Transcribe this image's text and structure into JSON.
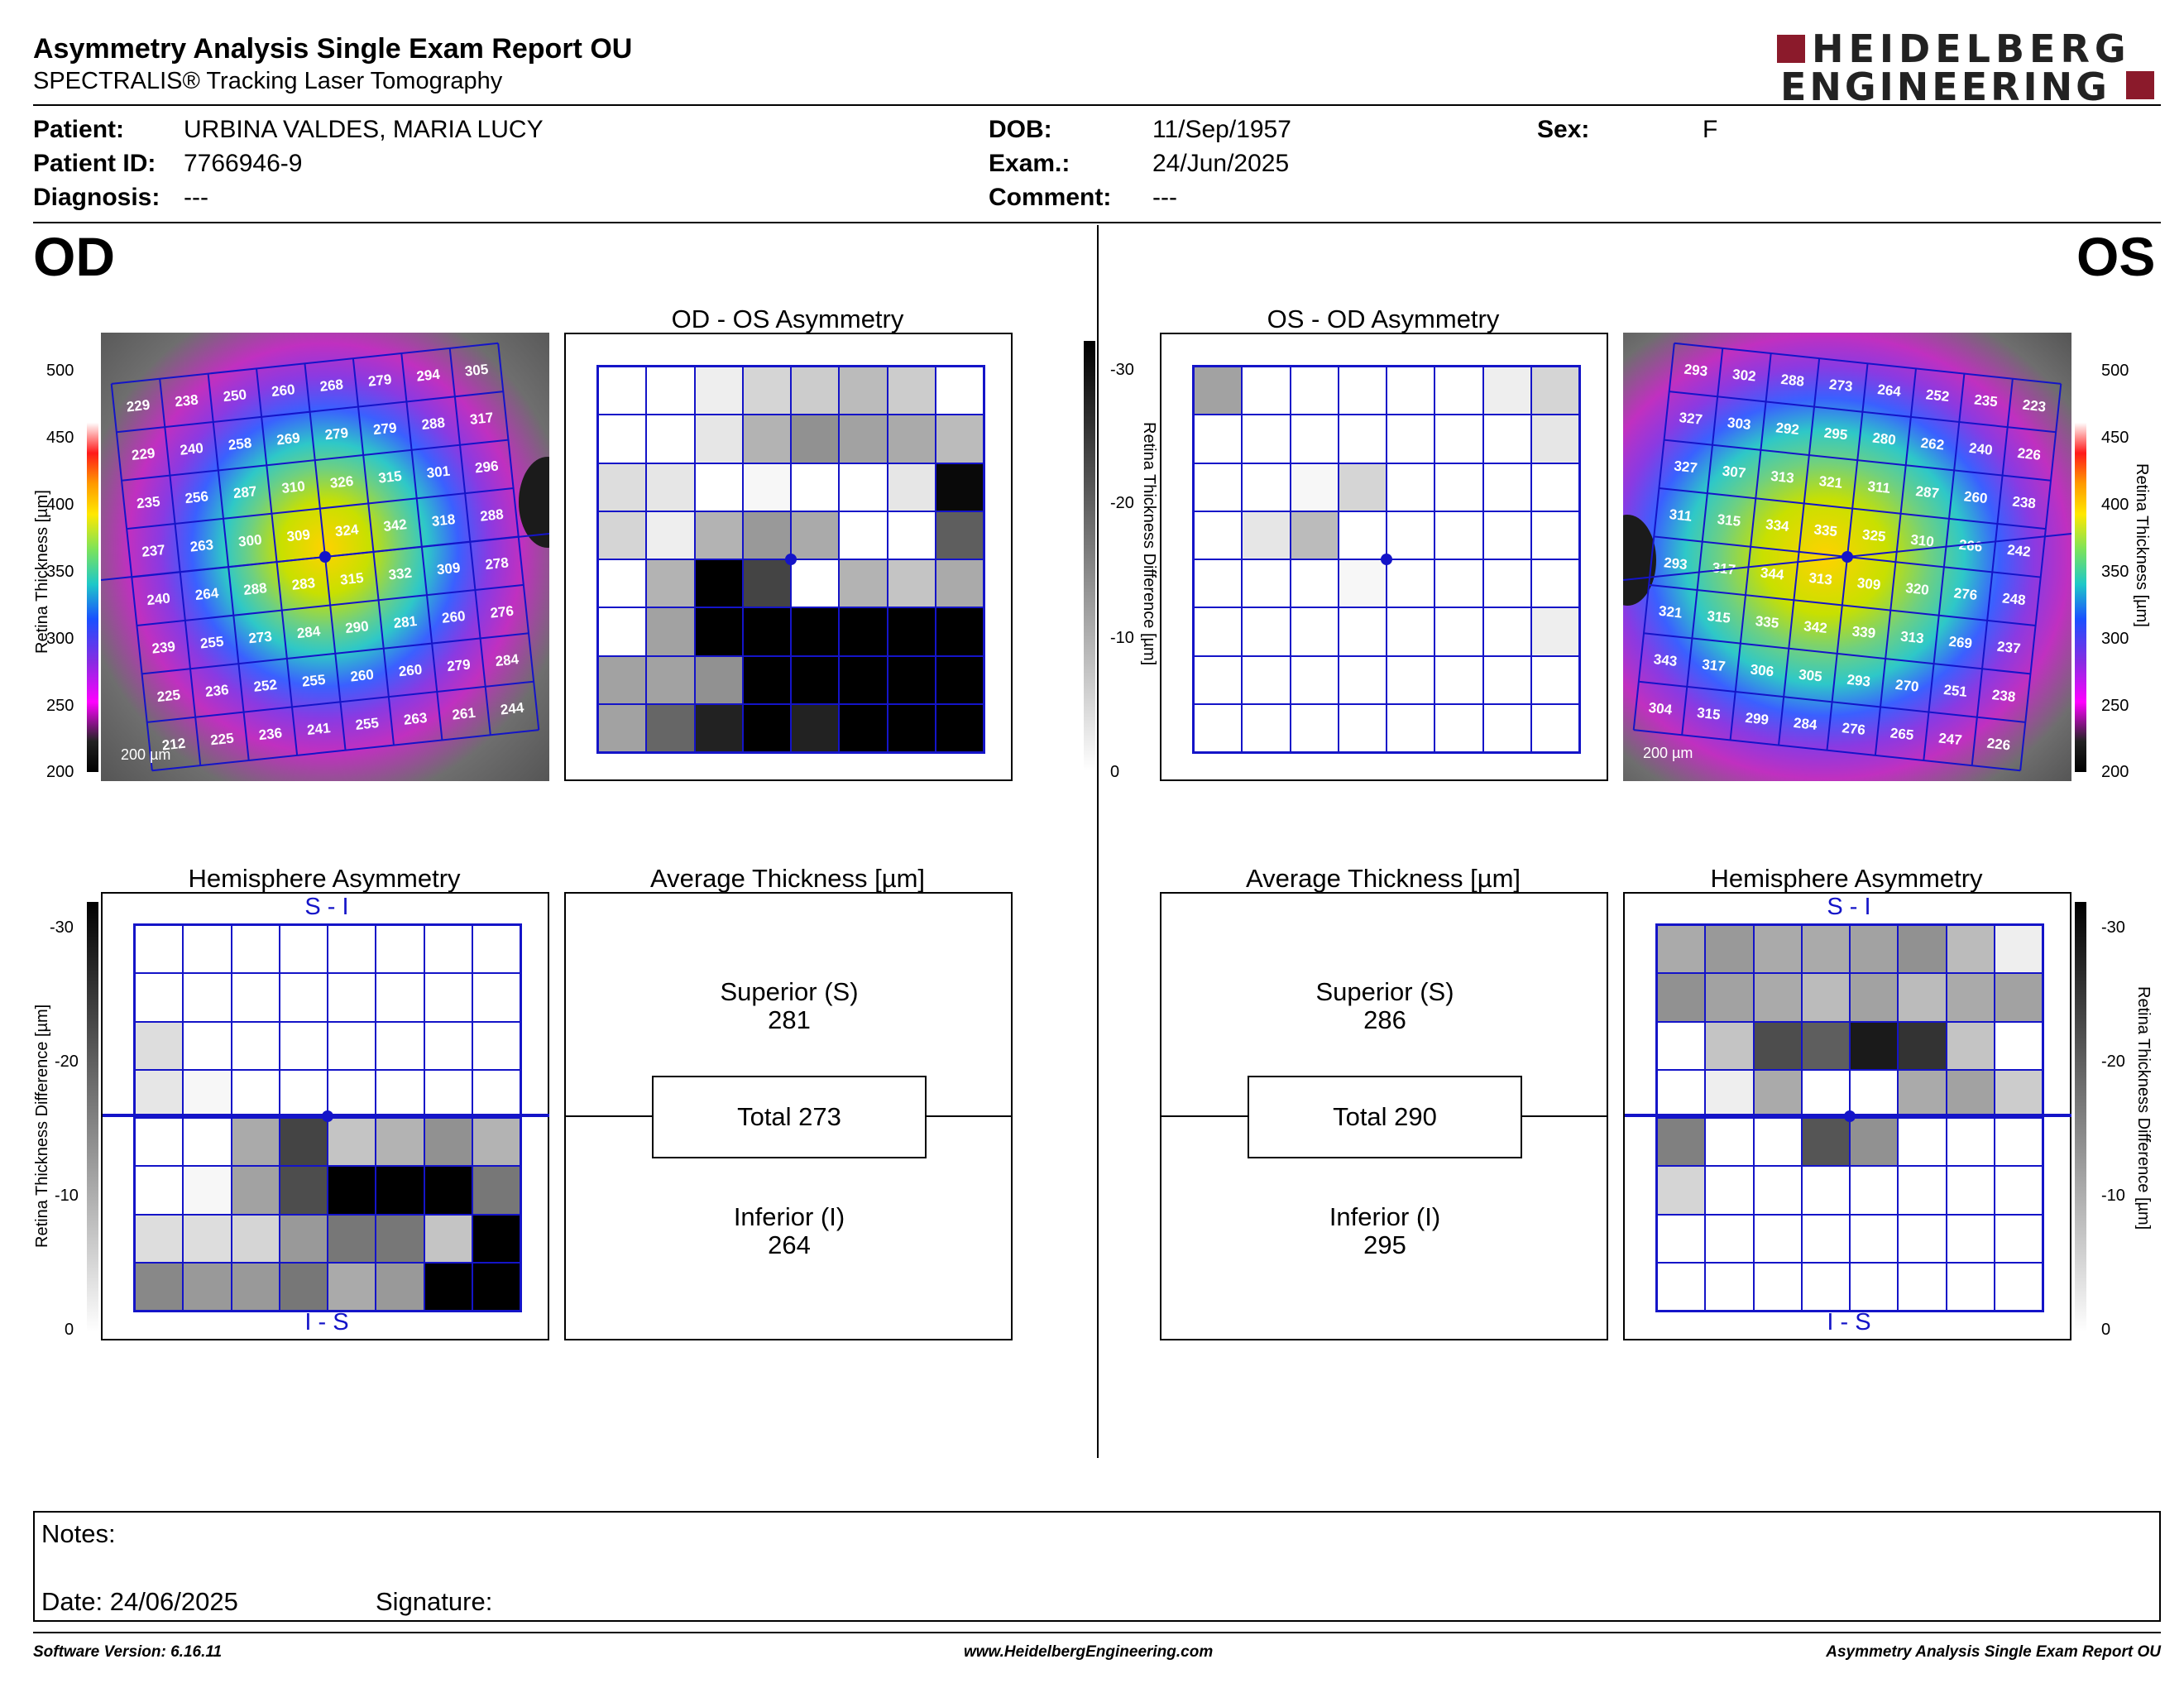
{
  "report": {
    "title": "Asymmetry Analysis Single Exam Report OU",
    "subtitle": "SPECTRALIS® Tracking Laser Tomography",
    "logo_line1": "HEIDELBERG",
    "logo_line2": "ENGINEERING"
  },
  "patient": {
    "patient_label": "Patient:",
    "patient_value": "URBINA VALDES, MARIA LUCY",
    "id_label": "Patient ID:",
    "id_value": "7766946-9",
    "diagnosis_label": "Diagnosis:",
    "diagnosis_value": "---",
    "dob_label": "DOB:",
    "dob_value": "11/Sep/1957",
    "exam_label": "Exam.:",
    "exam_value": "24/Jun/2025",
    "comment_label": "Comment:",
    "comment_value": "---",
    "sex_label": "Sex:",
    "sex_value": "F"
  },
  "od": {
    "eye_label": "OD",
    "asym_title": "OD - OS Asymmetry",
    "hemi_title": "Hemisphere Asymmetry",
    "avg_title": "Average Thickness [µm]",
    "superior_label": "Superior (S)",
    "superior_value": "281",
    "total_label": "Total 273",
    "inferior_label": "Inferior (I)",
    "inferior_value": "264",
    "scale_label": "200 µm",
    "hemi_top": "S - I",
    "hemi_bottom": "I - S",
    "thickness_grid": [
      [
        229,
        238,
        250,
        260,
        268,
        279,
        294,
        305
      ],
      [
        229,
        240,
        258,
        269,
        279,
        279,
        288,
        317
      ],
      [
        235,
        256,
        287,
        310,
        326,
        315,
        301,
        296
      ],
      [
        237,
        263,
        300,
        309,
        324,
        342,
        318,
        288
      ],
      [
        240,
        264,
        288,
        283,
        315,
        332,
        309,
        278
      ],
      [
        239,
        255,
        273,
        284,
        290,
        281,
        260,
        276
      ],
      [
        225,
        236,
        252,
        255,
        260,
        260,
        279,
        284
      ],
      [
        212,
        225,
        236,
        241,
        255,
        263,
        261,
        244
      ]
    ],
    "asymmetry_grid": [
      [
        0,
        0,
        2,
        5,
        6,
        8,
        6,
        0
      ],
      [
        0,
        0,
        3,
        9,
        13,
        11,
        10,
        8
      ],
      [
        4,
        3,
        0,
        1,
        0,
        0,
        3,
        29
      ],
      [
        5,
        2,
        9,
        12,
        10,
        0,
        0,
        19
      ],
      [
        0,
        9,
        30,
        22,
        0,
        9,
        7,
        10
      ],
      [
        0,
        11,
        30,
        30,
        30,
        30,
        30,
        30
      ],
      [
        11,
        11,
        13,
        30,
        30,
        30,
        30,
        30
      ],
      [
        11,
        18,
        26,
        30,
        26,
        30,
        30,
        30
      ]
    ],
    "hemi_grid": [
      [
        0,
        0,
        0,
        0,
        0,
        0,
        0,
        0
      ],
      [
        0,
        0,
        0,
        0,
        0,
        0,
        0,
        0
      ],
      [
        4,
        0,
        0,
        0,
        0,
        0,
        0,
        0
      ],
      [
        3,
        1,
        0,
        0,
        0,
        0,
        0,
        0
      ],
      [
        0,
        0,
        10,
        22,
        7,
        9,
        13,
        9
      ],
      [
        0,
        1,
        11,
        21,
        30,
        30,
        30,
        16
      ],
      [
        4,
        4,
        5,
        12,
        16,
        16,
        7,
        30
      ],
      [
        14,
        12,
        12,
        16,
        10,
        12,
        30,
        30
      ]
    ]
  },
  "os": {
    "eye_label": "OS",
    "asym_title": "OS - OD Asymmetry",
    "hemi_title": "Hemisphere Asymmetry",
    "avg_title": "Average Thickness [µm]",
    "superior_label": "Superior (S)",
    "superior_value": "286",
    "total_label": "Total 290",
    "inferior_label": "Inferior (I)",
    "inferior_value": "295",
    "scale_label": "200 µm",
    "hemi_top": "S - I",
    "hemi_bottom": "I - S",
    "thickness_grid": [
      [
        293,
        302,
        288,
        273,
        264,
        252,
        235,
        223
      ],
      [
        327,
        303,
        292,
        295,
        280,
        262,
        240,
        226
      ],
      [
        327,
        307,
        313,
        321,
        311,
        287,
        260,
        238
      ],
      [
        311,
        315,
        334,
        335,
        325,
        310,
        266,
        242
      ],
      [
        293,
        317,
        344,
        313,
        309,
        320,
        276,
        248
      ],
      [
        321,
        315,
        335,
        342,
        339,
        313,
        269,
        237
      ],
      [
        343,
        317,
        306,
        305,
        293,
        270,
        251,
        238
      ],
      [
        304,
        315,
        299,
        284,
        276,
        265,
        247,
        226
      ]
    ],
    "asymmetry_grid": [
      [
        11,
        0,
        0,
        0,
        0,
        0,
        2,
        5
      ],
      [
        0,
        0,
        0,
        0,
        0,
        0,
        0,
        3
      ],
      [
        0,
        0,
        1,
        5,
        0,
        0,
        0,
        0
      ],
      [
        0,
        3,
        8,
        0,
        0,
        0,
        0,
        0
      ],
      [
        0,
        0,
        0,
        1,
        0,
        0,
        0,
        0
      ],
      [
        0,
        0,
        0,
        0,
        0,
        0,
        0,
        2
      ],
      [
        0,
        0,
        0,
        0,
        0,
        0,
        0,
        0
      ],
      [
        0,
        0,
        0,
        0,
        0,
        0,
        0,
        0
      ]
    ],
    "hemi_grid": [
      [
        10,
        12,
        10,
        10,
        11,
        13,
        8,
        2
      ],
      [
        13,
        11,
        10,
        8,
        11,
        8,
        10,
        11
      ],
      [
        0,
        7,
        21,
        19,
        27,
        24,
        7,
        0
      ],
      [
        0,
        2,
        10,
        0,
        0,
        10,
        11,
        6
      ],
      [
        15,
        0,
        0,
        20,
        13,
        0,
        0,
        0
      ],
      [
        5,
        0,
        0,
        0,
        0,
        0,
        0,
        0
      ],
      [
        0,
        0,
        0,
        0,
        0,
        0,
        0,
        0
      ],
      [
        0,
        0,
        0,
        0,
        0,
        0,
        0,
        0
      ]
    ]
  },
  "thickness_scale": {
    "label": "Retina Thickness [µm]",
    "ticks": [
      "500",
      "450",
      "400",
      "350",
      "300",
      "250",
      "200"
    ]
  },
  "difference_scale": {
    "label": "Retina Thickness Difference [µm]",
    "ticks": [
      "-30",
      "-20",
      "-10",
      "0"
    ]
  },
  "notes": {
    "notes_label": "Notes:",
    "date_label": "Date: 24/06/2025",
    "signature_label": "Signature:"
  },
  "footer": {
    "software": "Software Version: 6.16.11",
    "website": "www.HeidelbergEngineering.com",
    "report_name": "Asymmetry Analysis Single Exam Report OU"
  },
  "colors": {
    "grid_blue": "#1414c8",
    "logo_red": "#8b1a2b"
  }
}
